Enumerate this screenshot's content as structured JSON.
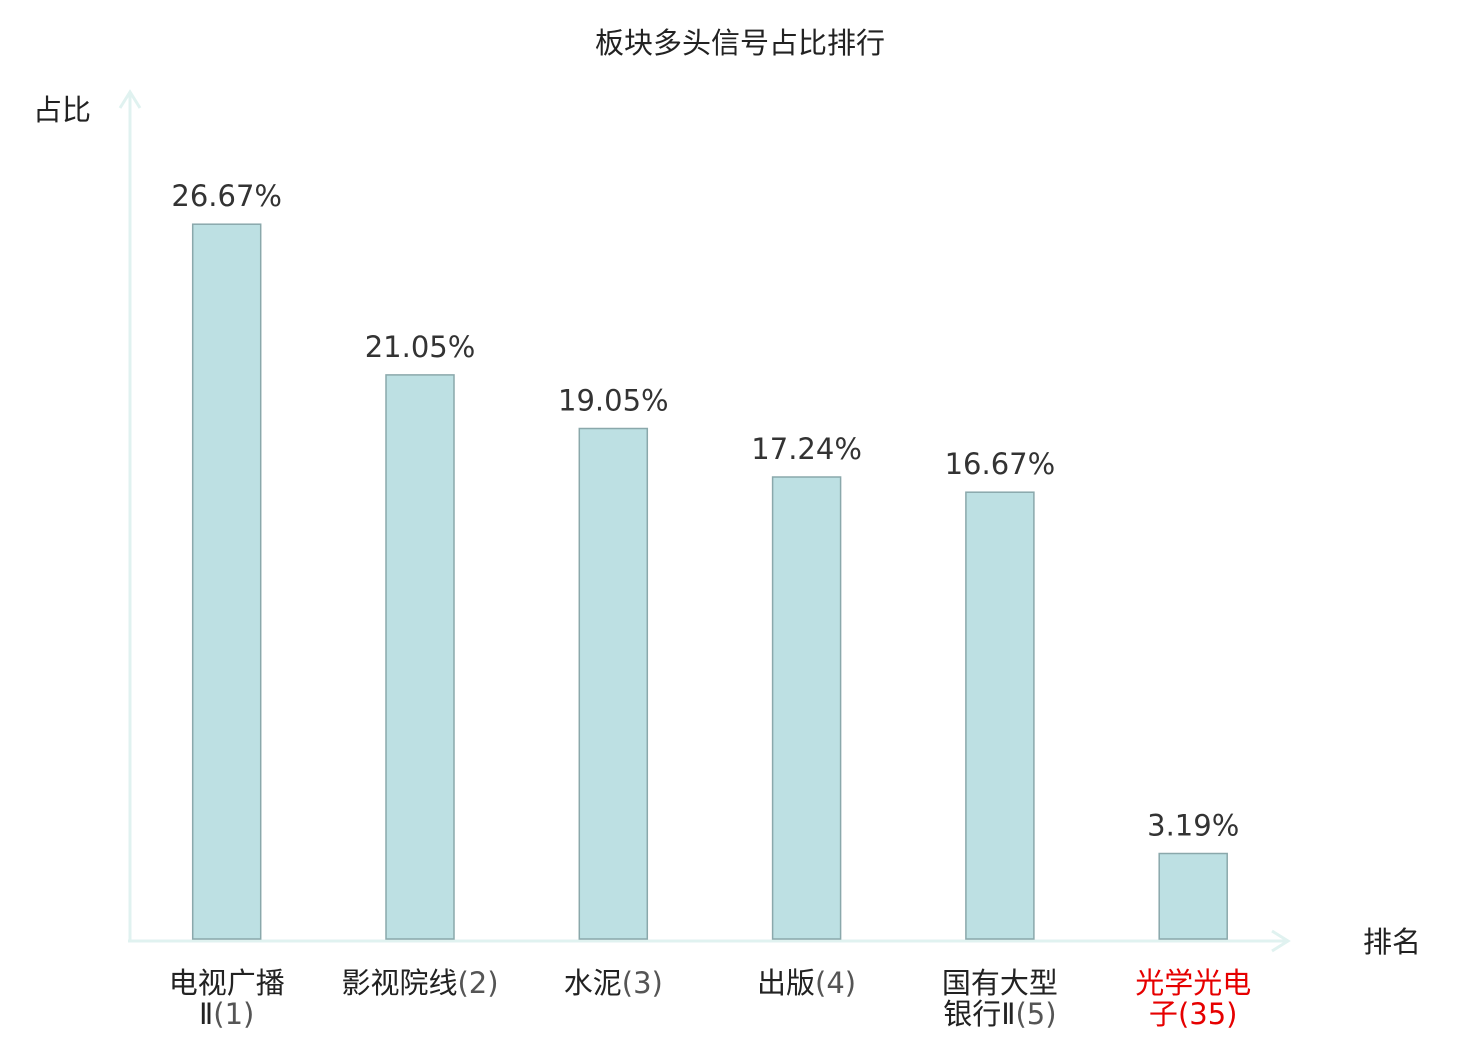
{
  "chart_data": {
    "type": "bar",
    "title": "板块多头信号占比排行",
    "xlabel": "排名",
    "ylabel": "占比",
    "ylim": [
      0,
      30
    ],
    "grid": false,
    "legend": "none",
    "categories": [
      {
        "lines": [
          "电视广播",
          "Ⅱ(1)"
        ],
        "highlight": false
      },
      {
        "lines": [
          "影视院线(2)"
        ],
        "highlight": false
      },
      {
        "lines": [
          "水泥(3)"
        ],
        "highlight": false
      },
      {
        "lines": [
          "出版(4)"
        ],
        "highlight": false
      },
      {
        "lines": [
          "国有大型",
          "银行Ⅱ(5)"
        ],
        "highlight": false
      },
      {
        "lines": [
          "光学光电",
          "子(35)"
        ],
        "highlight": true
      }
    ],
    "values": [
      26.67,
      21.05,
      19.05,
      17.24,
      16.67,
      3.19
    ],
    "value_labels": [
      "26.67%",
      "21.05%",
      "19.05%",
      "17.24%",
      "16.67%",
      "3.19%"
    ],
    "colors": {
      "bar_fill": "#bde0e3",
      "bar_stroke": "#8aa8ab",
      "axis": "#e0f2f0",
      "highlight_text": "#e60000"
    }
  }
}
